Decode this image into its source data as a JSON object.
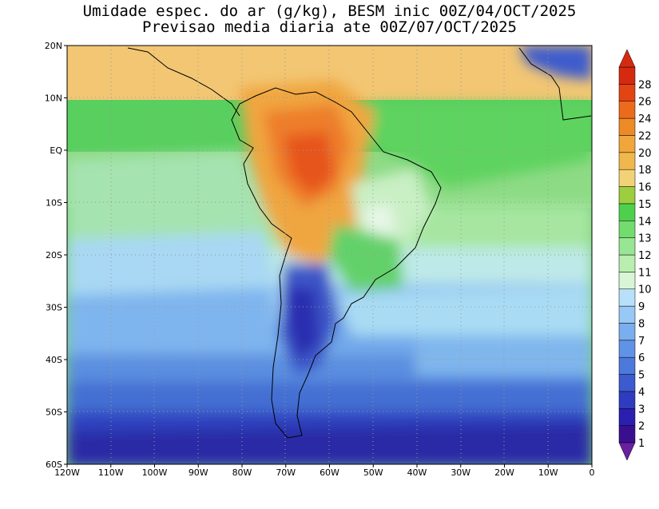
{
  "title": {
    "line1": "Umidade espec. do ar (g/kg), BESM inic 00Z/04/OCT/2025",
    "line2": "Previsao media diaria ate 00Z/07/OCT/2025"
  },
  "map": {
    "lon_range": [
      -120,
      0
    ],
    "lat_range": [
      -60,
      20
    ],
    "lon_ticks": [
      "120W",
      "110W",
      "100W",
      "90W",
      "80W",
      "70W",
      "60W",
      "50W",
      "40W",
      "30W",
      "20W",
      "10W",
      "0"
    ],
    "lat_ticks": [
      "20N",
      "10N",
      "EQ",
      "10S",
      "20S",
      "30S",
      "40S",
      "50S",
      "60S"
    ],
    "grid": "dotted"
  },
  "colorbar": {
    "levels": [
      "1",
      "2",
      "3",
      "4",
      "5",
      "6",
      "7",
      "8",
      "9",
      "10",
      "11",
      "12",
      "13",
      "14",
      "15",
      "16",
      "18",
      "20",
      "22",
      "24",
      "26",
      "28"
    ],
    "colors": [
      "#3a0f8f",
      "#2a1fb0",
      "#2f3cc0",
      "#3b5bcf",
      "#4d78dc",
      "#5f93e6",
      "#7aaeee",
      "#98c8f5",
      "#b8e0fb",
      "#d8f5d6",
      "#b9eeb0",
      "#98e693",
      "#73dc6e",
      "#4fd04d",
      "#9cce3e",
      "#f2d277",
      "#f0b84c",
      "#f0a63a",
      "#ee8a26",
      "#ec6a1c",
      "#e44414",
      "#d62a10"
    ],
    "arrow_top_color": "#d62a10",
    "arrow_bottom_color": "#6a1ea0"
  }
}
